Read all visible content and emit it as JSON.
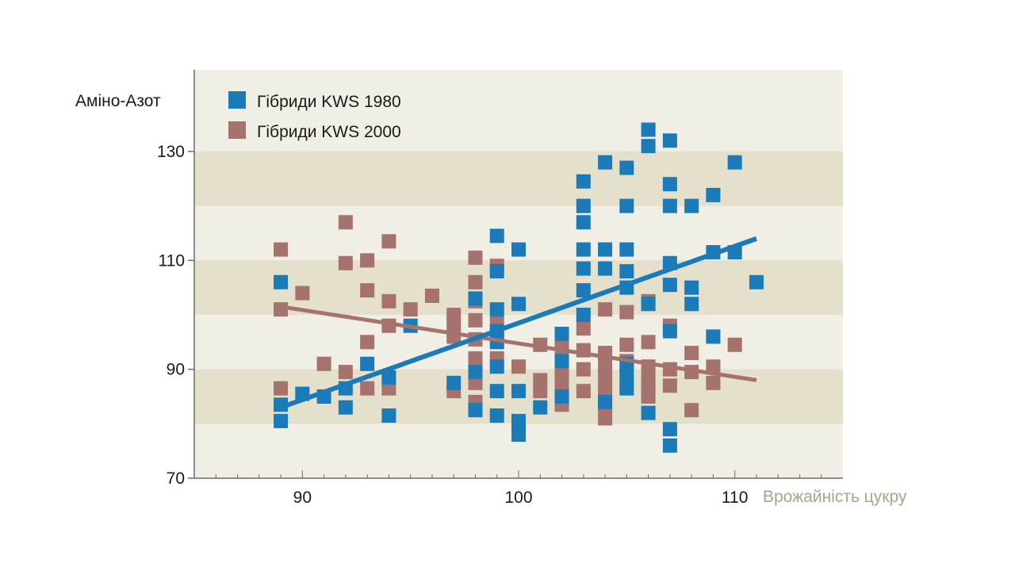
{
  "chart_data": {
    "type": "scatter",
    "xlabel": "Врожайність цукру",
    "ylabel": "Аміно-Азот",
    "xlim": [
      85,
      115
    ],
    "ylim": [
      70,
      145
    ],
    "x_ticks": [
      90,
      100,
      110
    ],
    "y_ticks": [
      70,
      90,
      110,
      130
    ],
    "grid": "alternating horizontal bands",
    "legend": "top-left",
    "series": [
      {
        "name": "Гібриди KWS 1980",
        "color": "#1a7bb8",
        "points": [
          [
            89,
            106
          ],
          [
            89,
            83.5
          ],
          [
            89,
            80.5
          ],
          [
            90,
            85.5
          ],
          [
            91,
            85
          ],
          [
            92,
            86.5
          ],
          [
            92,
            83
          ],
          [
            93,
            91
          ],
          [
            94,
            88.5
          ],
          [
            94,
            81.5
          ],
          [
            95,
            98
          ],
          [
            97,
            87.5
          ],
          [
            98,
            103
          ],
          [
            98,
            89.5
          ],
          [
            98,
            82.5
          ],
          [
            99,
            114.5
          ],
          [
            99,
            108
          ],
          [
            99,
            101
          ],
          [
            99,
            97
          ],
          [
            99,
            95
          ],
          [
            99,
            90.5
          ],
          [
            99,
            86
          ],
          [
            99,
            81.5
          ],
          [
            100,
            112
          ],
          [
            100,
            102
          ],
          [
            100,
            86
          ],
          [
            100,
            80.5
          ],
          [
            100,
            78
          ],
          [
            101,
            83
          ],
          [
            102,
            96.5
          ],
          [
            102,
            91.5
          ],
          [
            102,
            85
          ],
          [
            103,
            124.5
          ],
          [
            103,
            120
          ],
          [
            103,
            117
          ],
          [
            103,
            112
          ],
          [
            103,
            108.5
          ],
          [
            103,
            104.5
          ],
          [
            103,
            100
          ],
          [
            104,
            128
          ],
          [
            104,
            112
          ],
          [
            104,
            108.5
          ],
          [
            104,
            84
          ],
          [
            105,
            127
          ],
          [
            105,
            120
          ],
          [
            105,
            112
          ],
          [
            105,
            108
          ],
          [
            105,
            105
          ],
          [
            105,
            91
          ],
          [
            105,
            89
          ],
          [
            105,
            86.5
          ],
          [
            106,
            134
          ],
          [
            106,
            131
          ],
          [
            106,
            102
          ],
          [
            106,
            82
          ],
          [
            107,
            132
          ],
          [
            107,
            124
          ],
          [
            107,
            120
          ],
          [
            107,
            109.5
          ],
          [
            107,
            105.5
          ],
          [
            107,
            97
          ],
          [
            107,
            79
          ],
          [
            107,
            76
          ],
          [
            108,
            120
          ],
          [
            108,
            105
          ],
          [
            108,
            102
          ],
          [
            109,
            122
          ],
          [
            109,
            111.5
          ],
          [
            109,
            96
          ],
          [
            110,
            128
          ],
          [
            110,
            111.5
          ],
          [
            111,
            106
          ]
        ],
        "trend": [
          [
            89,
            83
          ],
          [
            111,
            114
          ]
        ]
      },
      {
        "name": "Гібриди KWS 2000",
        "color": "#a5726d",
        "points": [
          [
            89,
            112
          ],
          [
            89,
            101
          ],
          [
            89,
            86.5
          ],
          [
            90,
            104
          ],
          [
            91,
            91
          ],
          [
            92,
            117
          ],
          [
            92,
            109.5
          ],
          [
            92,
            89.5
          ],
          [
            93,
            110
          ],
          [
            93,
            104.5
          ],
          [
            93,
            95
          ],
          [
            93,
            86.5
          ],
          [
            94,
            113.5
          ],
          [
            94,
            102.5
          ],
          [
            94,
            98
          ],
          [
            94,
            86.5
          ],
          [
            95,
            101
          ],
          [
            96,
            103.5
          ],
          [
            97,
            100
          ],
          [
            97,
            98
          ],
          [
            97,
            96
          ],
          [
            97,
            86
          ],
          [
            98,
            110.5
          ],
          [
            98,
            106
          ],
          [
            98,
            102.5
          ],
          [
            98,
            99
          ],
          [
            98,
            95.5
          ],
          [
            98,
            92
          ],
          [
            98,
            87.5
          ],
          [
            98,
            84
          ],
          [
            99,
            109
          ],
          [
            99,
            98.5
          ],
          [
            99,
            92
          ],
          [
            100,
            90.5
          ],
          [
            101,
            94.5
          ],
          [
            101,
            88
          ],
          [
            101,
            86
          ],
          [
            102,
            94
          ],
          [
            102,
            89
          ],
          [
            102,
            87
          ],
          [
            102,
            83.5
          ],
          [
            103,
            97.5
          ],
          [
            103,
            93.5
          ],
          [
            103,
            90
          ],
          [
            103,
            86
          ],
          [
            104,
            101
          ],
          [
            104,
            93
          ],
          [
            104,
            90.5
          ],
          [
            104,
            88
          ],
          [
            104,
            85.5
          ],
          [
            104,
            83
          ],
          [
            104,
            81
          ],
          [
            105,
            100.5
          ],
          [
            105,
            94.5
          ],
          [
            105,
            91.5
          ],
          [
            105,
            87
          ],
          [
            106,
            102.5
          ],
          [
            106,
            95
          ],
          [
            106,
            90.5
          ],
          [
            106,
            88.5
          ],
          [
            106,
            86.5
          ],
          [
            106,
            85
          ],
          [
            107,
            98
          ],
          [
            107,
            90
          ],
          [
            107,
            87
          ],
          [
            108,
            93
          ],
          [
            108,
            89.5
          ],
          [
            108,
            82.5
          ],
          [
            109,
            90.5
          ],
          [
            109,
            87.5
          ],
          [
            110,
            94.5
          ]
        ],
        "trend": [
          [
            89,
            101.5
          ],
          [
            111,
            88
          ]
        ]
      }
    ]
  }
}
